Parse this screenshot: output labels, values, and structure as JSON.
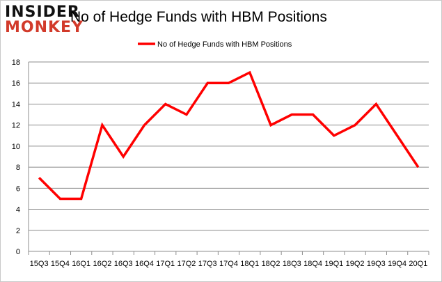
{
  "logo": {
    "line1": "INSIDER",
    "line2": "MONKEY"
  },
  "chart_data": {
    "type": "line",
    "title": "No of Hedge Funds with HBM Positions",
    "legend": {
      "label": "No of Hedge Funds with HBM Positions",
      "position": "top-center"
    },
    "categories": [
      "15Q3",
      "15Q4",
      "16Q1",
      "16Q2",
      "16Q3",
      "16Q4",
      "17Q1",
      "17Q2",
      "17Q3",
      "17Q4",
      "18Q1",
      "18Q2",
      "18Q3",
      "18Q4",
      "19Q1",
      "19Q2",
      "19Q3",
      "19Q4",
      "20Q1"
    ],
    "series": [
      {
        "name": "No of Hedge Funds with HBM Positions",
        "color": "#ff0000",
        "values": [
          7,
          5,
          5,
          12,
          9,
          12,
          14,
          13,
          16,
          16,
          17,
          12,
          13,
          13,
          11,
          12,
          14,
          11,
          8
        ]
      }
    ],
    "ylim": [
      0,
      18
    ],
    "yticks": [
      0,
      2,
      4,
      6,
      8,
      10,
      12,
      14,
      16,
      18
    ],
    "grid": true,
    "xlabel": "",
    "ylabel": ""
  }
}
